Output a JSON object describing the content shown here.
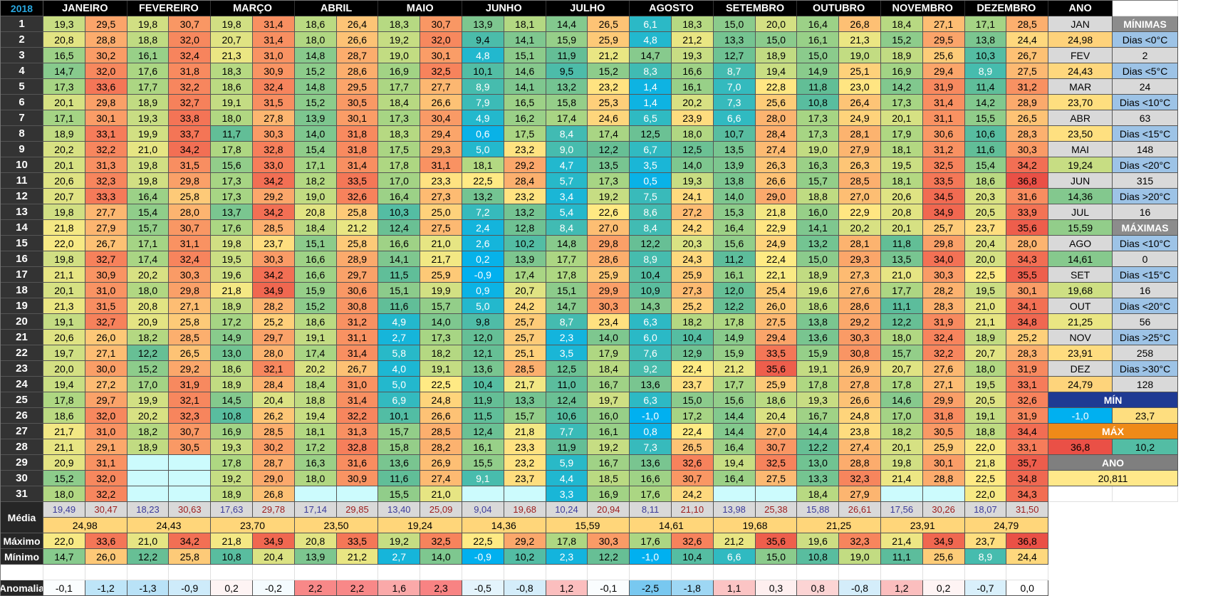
{
  "year": "2018",
  "months": [
    "JANEIRO",
    "FEVEREIRO",
    "MARÇO",
    "ABRIL",
    "MAIO",
    "JUNHO",
    "JULHO",
    "AGOSTO",
    "SETEMBRO",
    "OUTUBRO",
    "NOVEMBRO",
    "DEZEMBRO"
  ],
  "year_header": "ANO",
  "row_labels": {
    "mean": "Média",
    "max": "Máximo",
    "min": "Mínimo",
    "anomaly": "Anomalia"
  },
  "days": [
    [
      "19,3",
      "29,5",
      "19,8",
      "30,7",
      "19,8",
      "31,4",
      "18,6",
      "26,4",
      "18,3",
      "30,7",
      "13,9",
      "18,1",
      "14,4",
      "26,5",
      "6,1",
      "18,3",
      "15,0",
      "20,0",
      "16,4",
      "26,8",
      "18,4",
      "27,1",
      "17,1",
      "28,5"
    ],
    [
      "20,8",
      "28,8",
      "18,8",
      "32,0",
      "20,7",
      "31,4",
      "18,0",
      "26,6",
      "19,2",
      "32,0",
      "9,4",
      "14,1",
      "15,9",
      "25,9",
      "4,8",
      "21,2",
      "13,3",
      "15,0",
      "16,1",
      "21,3",
      "15,2",
      "29,5",
      "13,8",
      "24,4"
    ],
    [
      "16,5",
      "30,2",
      "16,1",
      "32,4",
      "21,3",
      "31,0",
      "14,8",
      "28,7",
      "19,0",
      "30,1",
      "4,8",
      "15,1",
      "11,9",
      "21,2",
      "14,7",
      "19,3",
      "12,7",
      "18,9",
      "15,0",
      "19,0",
      "18,9",
      "25,6",
      "10,3",
      "26,7"
    ],
    [
      "14,7",
      "32,0",
      "17,6",
      "31,8",
      "18,3",
      "30,9",
      "15,2",
      "28,6",
      "16,9",
      "32,5",
      "10,1",
      "14,6",
      "9,5",
      "15,2",
      "8,3",
      "16,6",
      "8,7",
      "19,4",
      "14,9",
      "25,1",
      "16,9",
      "29,4",
      "8,9",
      "27,5"
    ],
    [
      "17,3",
      "33,6",
      "17,7",
      "32,2",
      "18,6",
      "32,4",
      "14,8",
      "29,5",
      "17,7",
      "27,7",
      "8,9",
      "14,1",
      "13,2",
      "23,2",
      "1,4",
      "16,1",
      "7,0",
      "22,8",
      "11,8",
      "23,0",
      "14,2",
      "31,9",
      "11,4",
      "31,2"
    ],
    [
      "20,1",
      "29,8",
      "18,9",
      "32,7",
      "19,1",
      "31,5",
      "15,2",
      "30,5",
      "18,4",
      "26,6",
      "7,9",
      "16,5",
      "15,8",
      "25,3",
      "1,4",
      "20,2",
      "7,3",
      "25,6",
      "10,8",
      "26,4",
      "17,3",
      "31,4",
      "14,2",
      "28,9"
    ],
    [
      "17,1",
      "30,1",
      "19,3",
      "33,8",
      "18,0",
      "27,8",
      "13,9",
      "30,1",
      "17,3",
      "30,4",
      "4,9",
      "16,2",
      "17,4",
      "24,6",
      "6,5",
      "23,9",
      "6,6",
      "28,0",
      "17,3",
      "24,9",
      "20,1",
      "31,1",
      "15,5",
      "26,5"
    ],
    [
      "18,9",
      "33,1",
      "19,9",
      "33,7",
      "11,7",
      "30,3",
      "14,0",
      "31,8",
      "18,3",
      "29,4",
      "0,6",
      "17,5",
      "8,4",
      "17,4",
      "12,5",
      "18,0",
      "10,7",
      "28,4",
      "17,3",
      "28,1",
      "17,9",
      "30,6",
      "10,6",
      "28,3"
    ],
    [
      "20,2",
      "32,2",
      "21,0",
      "34,2",
      "17,8",
      "32,8",
      "15,4",
      "31,8",
      "17,5",
      "29,3",
      "5,0",
      "23,2",
      "9,0",
      "12,2",
      "6,7",
      "12,5",
      "13,5",
      "27,4",
      "19,0",
      "27,9",
      "18,1",
      "31,2",
      "11,6",
      "30,3"
    ],
    [
      "20,1",
      "31,3",
      "19,8",
      "31,5",
      "15,6",
      "33,0",
      "17,1",
      "31,4",
      "17,8",
      "31,1",
      "18,1",
      "29,2",
      "4,7",
      "13,5",
      "3,5",
      "14,0",
      "13,9",
      "26,3",
      "16,3",
      "26,3",
      "19,5",
      "32,5",
      "15,4",
      "34,2"
    ],
    [
      "20,6",
      "32,3",
      "19,8",
      "29,8",
      "17,3",
      "34,2",
      "18,2",
      "33,5",
      "17,0",
      "23,3",
      "22,5",
      "28,4",
      "5,7",
      "17,3",
      "0,5",
      "19,3",
      "13,8",
      "26,6",
      "15,7",
      "28,5",
      "18,1",
      "33,5",
      "18,6",
      "36,8"
    ],
    [
      "20,7",
      "33,3",
      "16,4",
      "25,8",
      "17,3",
      "29,2",
      "19,0",
      "32,6",
      "16,4",
      "27,3",
      "13,2",
      "23,2",
      "3,4",
      "19,2",
      "7,5",
      "24,1",
      "14,0",
      "29,0",
      "18,8",
      "27,0",
      "20,6",
      "34,5",
      "20,3",
      "31,6"
    ],
    [
      "19,8",
      "27,7",
      "15,4",
      "28,0",
      "13,7",
      "34,2",
      "20,8",
      "25,8",
      "10,3",
      "25,0",
      "7,2",
      "13,2",
      "5,4",
      "22,6",
      "8,6",
      "27,2",
      "15,3",
      "21,8",
      "16,0",
      "22,9",
      "20,8",
      "34,9",
      "20,5",
      "33,9"
    ],
    [
      "21,8",
      "27,9",
      "15,7",
      "30,7",
      "17,6",
      "28,5",
      "18,4",
      "21,2",
      "12,4",
      "27,5",
      "2,4",
      "12,8",
      "8,4",
      "27,0",
      "8,4",
      "24,2",
      "16,4",
      "22,9",
      "14,1",
      "20,2",
      "20,1",
      "25,7",
      "23,7",
      "35,6"
    ],
    [
      "22,0",
      "26,7",
      "17,1",
      "31,1",
      "19,8",
      "23,7",
      "15,1",
      "25,8",
      "16,6",
      "21,0",
      "2,6",
      "10,2",
      "14,8",
      "29,8",
      "12,2",
      "20,3",
      "15,6",
      "24,9",
      "13,2",
      "28,1",
      "11,8",
      "29,8",
      "20,4",
      "28,0"
    ],
    [
      "19,8",
      "32,7",
      "17,4",
      "32,4",
      "19,5",
      "30,3",
      "16,6",
      "28,9",
      "14,1",
      "21,7",
      "0,2",
      "13,9",
      "17,7",
      "28,6",
      "8,9",
      "24,3",
      "11,2",
      "22,4",
      "15,0",
      "29,3",
      "13,5",
      "34,0",
      "20,0",
      "34,3"
    ],
    [
      "21,1",
      "30,9",
      "20,2",
      "30,3",
      "19,6",
      "34,2",
      "16,6",
      "29,7",
      "11,5",
      "25,9",
      "-0,9",
      "17,4",
      "17,8",
      "25,9",
      "10,4",
      "25,9",
      "16,1",
      "22,1",
      "18,9",
      "27,3",
      "21,0",
      "30,3",
      "22,5",
      "35,5"
    ],
    [
      "20,1",
      "31,0",
      "18,0",
      "29,8",
      "21,8",
      "34,9",
      "15,9",
      "30,6",
      "15,1",
      "19,9",
      "0,9",
      "20,7",
      "15,1",
      "29,9",
      "10,9",
      "27,3",
      "12,0",
      "25,4",
      "19,6",
      "27,6",
      "17,7",
      "28,2",
      "19,5",
      "30,1"
    ],
    [
      "21,3",
      "31,5",
      "20,8",
      "27,1",
      "18,9",
      "28,2",
      "15,2",
      "30,8",
      "11,6",
      "15,7",
      "5,0",
      "24,2",
      "14,7",
      "30,3",
      "14,3",
      "25,2",
      "12,2",
      "26,0",
      "18,6",
      "28,6",
      "11,1",
      "28,3",
      "21,0",
      "34,1"
    ],
    [
      "19,1",
      "32,7",
      "20,9",
      "25,8",
      "17,2",
      "25,2",
      "18,6",
      "31,2",
      "4,9",
      "14,0",
      "9,8",
      "25,7",
      "8,7",
      "23,4",
      "6,3",
      "18,2",
      "17,8",
      "27,5",
      "13,8",
      "29,2",
      "12,2",
      "31,9",
      "21,1",
      "34,8"
    ],
    [
      "20,6",
      "26,0",
      "18,2",
      "28,5",
      "14,9",
      "29,7",
      "19,1",
      "31,1",
      "2,7",
      "17,3",
      "12,0",
      "25,7",
      "2,3",
      "14,0",
      "6,0",
      "10,4",
      "14,9",
      "29,4",
      "13,6",
      "30,3",
      "18,0",
      "32,4",
      "18,9",
      "25,2"
    ],
    [
      "19,7",
      "27,1",
      "12,2",
      "26,5",
      "13,0",
      "28,0",
      "17,4",
      "31,4",
      "5,8",
      "18,2",
      "12,1",
      "25,1",
      "3,5",
      "17,9",
      "7,6",
      "12,9",
      "15,9",
      "33,5",
      "15,9",
      "30,8",
      "15,7",
      "32,2",
      "20,7",
      "28,3"
    ],
    [
      "20,0",
      "30,0",
      "15,2",
      "29,2",
      "18,6",
      "32,1",
      "20,2",
      "26,7",
      "4,0",
      "19,1",
      "13,6",
      "28,5",
      "12,5",
      "18,4",
      "9,2",
      "22,4",
      "21,2",
      "35,6",
      "19,1",
      "26,9",
      "20,7",
      "27,6",
      "18,0",
      "31,9"
    ],
    [
      "19,4",
      "27,2",
      "17,0",
      "31,9",
      "18,9",
      "28,4",
      "18,4",
      "31,0",
      "5,0",
      "22,5",
      "10,4",
      "21,7",
      "11,0",
      "16,7",
      "13,6",
      "23,7",
      "17,7",
      "25,9",
      "17,8",
      "27,8",
      "17,8",
      "27,1",
      "19,5",
      "33,1"
    ],
    [
      "17,8",
      "29,7",
      "19,9",
      "32,1",
      "14,5",
      "20,4",
      "18,8",
      "31,4",
      "6,9",
      "24,8",
      "11,9",
      "13,3",
      "12,4",
      "19,7",
      "6,3",
      "15,0",
      "15,6",
      "18,6",
      "19,3",
      "26,6",
      "14,6",
      "29,9",
      "20,5",
      "32,6"
    ],
    [
      "18,6",
      "32,0",
      "20,2",
      "32,3",
      "10,8",
      "26,2",
      "19,4",
      "32,2",
      "10,1",
      "26,6",
      "11,5",
      "15,7",
      "10,6",
      "16,0",
      "-1,0",
      "17,2",
      "14,4",
      "20,4",
      "16,7",
      "24,8",
      "17,0",
      "31,8",
      "19,1",
      "31,9"
    ],
    [
      "21,7",
      "31,0",
      "18,2",
      "30,7",
      "16,9",
      "28,5",
      "18,1",
      "31,3",
      "15,7",
      "28,5",
      "12,4",
      "21,8",
      "7,7",
      "16,1",
      "0,8",
      "22,4",
      "14,4",
      "27,0",
      "14,4",
      "23,8",
      "18,2",
      "30,5",
      "18,8",
      "34,4"
    ],
    [
      "21,1",
      "29,1",
      "18,9",
      "30,5",
      "19,3",
      "30,2",
      "17,2",
      "32,8",
      "15,8",
      "28,2",
      "16,1",
      "23,3",
      "11,9",
      "19,2",
      "7,3",
      "26,5",
      "16,4",
      "30,7",
      "12,2",
      "27,4",
      "20,1",
      "25,9",
      "22,0",
      "33,1"
    ],
    [
      "20,9",
      "31,1",
      "",
      "",
      "17,8",
      "28,7",
      "16,3",
      "31,6",
      "13,6",
      "26,9",
      "15,5",
      "23,2",
      "5,9",
      "16,7",
      "13,6",
      "32,6",
      "19,4",
      "32,5",
      "13,0",
      "28,8",
      "19,8",
      "30,1",
      "21,8",
      "35,7"
    ],
    [
      "15,2",
      "32,0",
      "",
      "",
      "19,2",
      "29,0",
      "18,0",
      "30,9",
      "11,6",
      "27,4",
      "9,1",
      "23,7",
      "4,4",
      "18,5",
      "16,6",
      "30,7",
      "16,4",
      "27,5",
      "13,3",
      "32,3",
      "21,4",
      "28,8",
      "22,5",
      "34,8"
    ],
    [
      "18,0",
      "32,2",
      "",
      "",
      "18,9",
      "26,8",
      "",
      "",
      "15,5",
      "21,0",
      "",
      "",
      "3,3",
      "16,9",
      "17,6",
      "24,2",
      "",
      "",
      "18,4",
      "27,9",
      "",
      "",
      "22,0",
      "34,3"
    ]
  ],
  "mean_row": [
    "19,49",
    "30,47",
    "18,23",
    "30,63",
    "17,63",
    "29,78",
    "17,14",
    "29,85",
    "13,40",
    "25,09",
    "9,04",
    "19,68",
    "10,24",
    "20,94",
    "8,11",
    "21,10",
    "13,98",
    "25,38",
    "15,88",
    "26,61",
    "17,56",
    "30,26",
    "18,07",
    "31,50"
  ],
  "monthly_mean": [
    "24,98",
    "24,43",
    "23,70",
    "23,50",
    "19,24",
    "14,36",
    "15,59",
    "14,61",
    "19,68",
    "21,25",
    "23,91",
    "24,79"
  ],
  "max_row": [
    "22,0",
    "33,6",
    "21,0",
    "34,2",
    "21,8",
    "34,9",
    "20,8",
    "33,5",
    "19,2",
    "32,5",
    "22,5",
    "29,2",
    "17,8",
    "30,3",
    "17,6",
    "32,6",
    "21,2",
    "35,6",
    "19,6",
    "32,3",
    "21,4",
    "34,9",
    "23,7",
    "36,8"
  ],
  "min_row": [
    "14,7",
    "26,0",
    "12,2",
    "25,8",
    "10,8",
    "20,4",
    "13,9",
    "21,2",
    "2,7",
    "14,0",
    "-0,9",
    "10,2",
    "2,3",
    "12,2",
    "-1,0",
    "10,4",
    "6,6",
    "15,0",
    "10,8",
    "19,0",
    "11,1",
    "25,6",
    "8,9",
    "24,4"
  ],
  "anomaly_row": [
    "-0,1",
    "-1,2",
    "-1,3",
    "-0,9",
    "0,2",
    "-0,2",
    "2,2",
    "2,2",
    "1,6",
    "2,3",
    "-0,5",
    "-0,8",
    "1,2",
    "-0,1",
    "-2,5",
    "-1,8",
    "1,1",
    "0,3",
    "0,8",
    "-0,8",
    "1,2",
    "0,2",
    "-0,7",
    "0,0"
  ],
  "sidebar": {
    "col1": [
      "JAN",
      "24,98",
      "FEV",
      "24,43",
      "MAR",
      "23,70",
      "ABR",
      "23,50",
      "MAI",
      "19,24",
      "JUN",
      "14,36",
      "JUL",
      "15,59",
      "AGO",
      "14,61",
      "SET",
      "19,68",
      "OUT",
      "21,25",
      "NOV",
      "23,91",
      "DEZ",
      "24,79"
    ],
    "col2": [
      "MÍNIMAS",
      "Dias <0°C",
      "2",
      "Dias <5°C",
      "24",
      "Dias <10°C",
      "63",
      "Dias <15°C",
      "148",
      "Dias <20°C",
      "315",
      "Dias >20°C",
      "16",
      "MÁXIMAS",
      "Dias <10°C",
      "0",
      "Dias <15°C",
      "16",
      "Dias <20°C",
      "56",
      "Dias >25°C",
      "258",
      "Dias >30°C",
      "128"
    ],
    "min_header": "MÍN",
    "min_values": [
      "-1,0",
      "23,7"
    ],
    "max_header": "MÁX",
    "max_values": [
      "36,8",
      "10,2"
    ],
    "year_header": "ANO",
    "year_mean": "20,811"
  }
}
